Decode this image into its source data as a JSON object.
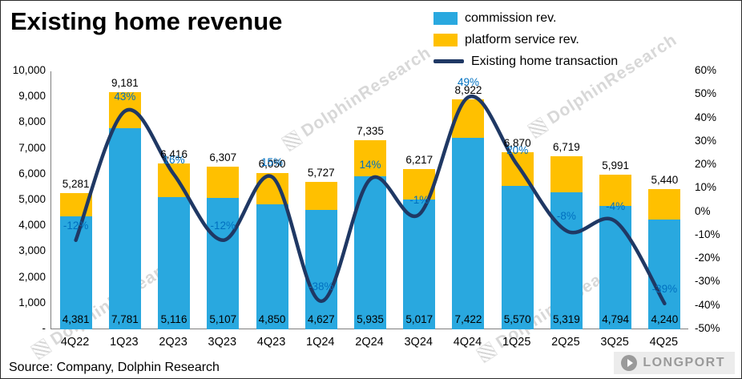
{
  "title": "Existing home revenue",
  "source": "Source: Company, Dolphin Research",
  "watermark": {
    "text": "DolphinResearch",
    "logo_text": "LONGPORT"
  },
  "legend": [
    {
      "label": "commission rev.",
      "type": "bar",
      "color": "#29A8DF"
    },
    {
      "label": "platform service rev.",
      "type": "bar",
      "color": "#FFC000"
    },
    {
      "label": "Existing home transaction",
      "type": "line",
      "color": "#1F3864"
    }
  ],
  "chart_data": {
    "type": "bar",
    "subtype": "stacked-bar-with-right-axis-line",
    "title": "Existing home revenue",
    "categories": [
      "4Q22",
      "1Q23",
      "2Q23",
      "3Q23",
      "4Q23",
      "1Q24",
      "2Q24",
      "3Q24",
      "4Q24",
      "1Q25",
      "2Q25",
      "3Q25",
      "4Q25"
    ],
    "series": [
      {
        "name": "commission rev.",
        "chart": "bar",
        "stack": "revenue",
        "axis": "left",
        "color": "#29A8DF",
        "values": [
          4381,
          7781,
          5116,
          5107,
          4850,
          4627,
          5935,
          5017,
          7422,
          5570,
          5319,
          4794,
          4240
        ]
      },
      {
        "name": "platform service rev.",
        "chart": "bar",
        "stack": "revenue",
        "axis": "left",
        "color": "#FFC000",
        "values": [
          900,
          1400,
          1300,
          1200,
          1200,
          1100,
          1400,
          1200,
          1500,
          1300,
          1400,
          1197,
          1200
        ]
      },
      {
        "name": "Existing home transaction",
        "chart": "line",
        "axis": "right",
        "color": "#1F3864",
        "smooth": true,
        "values": [
          -12,
          43,
          16,
          -12,
          15,
          -38,
          14,
          -1,
          49,
          20,
          -8,
          -4,
          -39
        ]
      }
    ],
    "totals": [
      5281,
      9181,
      6416,
      6307,
      6050,
      5727,
      7335,
      6217,
      8922,
      6870,
      6719,
      5991,
      5440
    ],
    "total_labels": [
      "5,281",
      "9,181",
      "6,416",
      "6,307",
      "6,050",
      "5,727",
      "7,335",
      "6,217",
      "8,922",
      "6,870",
      "6,719",
      "5,991",
      "5,440"
    ],
    "commission_labels": [
      "4,381",
      "7,781",
      "5,116",
      "5,107",
      "4,850",
      "4,627",
      "5,935",
      "5,017",
      "7,422",
      "5,570",
      "5,319",
      "4,794",
      "4,240"
    ],
    "line_labels": [
      "-12%",
      "43%",
      "16%",
      "-12%",
      "15%",
      "-38%",
      "14%",
      "-1%",
      "49%",
      "20%",
      "-8%",
      "-4%",
      "-39%"
    ],
    "line_label_color": "#0070C0",
    "left_axis": {
      "min": 0,
      "max": 10000,
      "ticks": [
        "10,000",
        "9,000",
        "8,000",
        "7,000",
        "6,000",
        "5,000",
        "4,000",
        "3,000",
        "2,000",
        "1,000",
        "-"
      ]
    },
    "right_axis": {
      "min": -50,
      "max": 60,
      "ticks": [
        "60%",
        "50%",
        "40%",
        "30%",
        "20%",
        "10%",
        "0%",
        "-10%",
        "-20%",
        "-30%",
        "-40%",
        "-50%"
      ]
    },
    "grid": false,
    "legend_position": "top-right"
  }
}
